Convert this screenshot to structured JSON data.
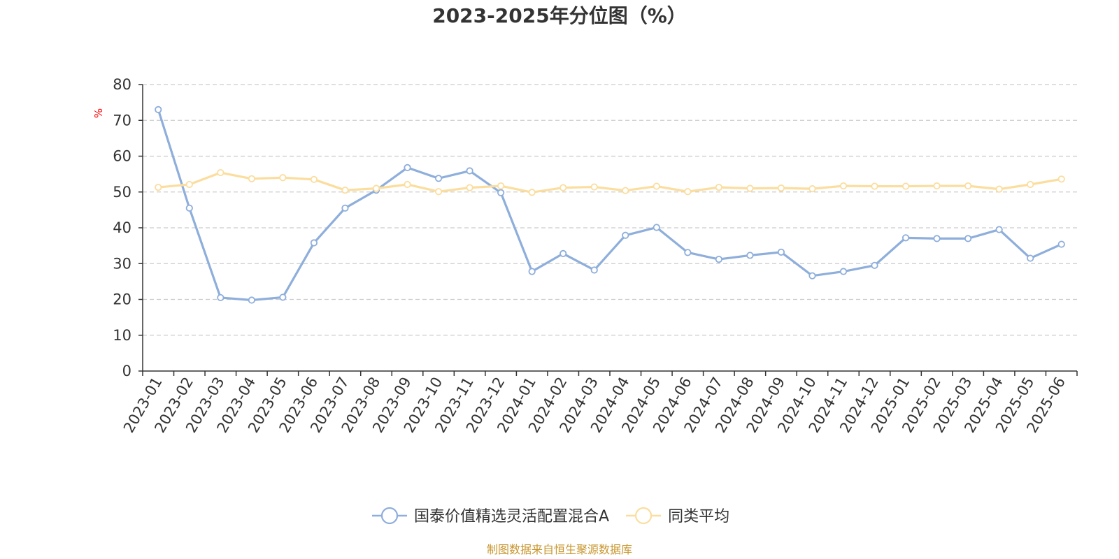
{
  "chart_data": {
    "type": "line",
    "title": "2023-2025年分位图（%）",
    "ylabel": "%",
    "ylim": [
      0,
      80
    ],
    "yticks": [
      "0",
      "10",
      "20",
      "30",
      "40",
      "50",
      "60",
      "70",
      "80"
    ],
    "categories": [
      "2023-01",
      "2023-02",
      "2023-03",
      "2023-04",
      "2023-05",
      "2023-06",
      "2023-07",
      "2023-08",
      "2023-09",
      "2023-10",
      "2023-11",
      "2023-12",
      "2024-01",
      "2024-02",
      "2024-03",
      "2024-04",
      "2024-05",
      "2024-06",
      "2024-07",
      "2024-08",
      "2024-09",
      "2024-10",
      "2024-11",
      "2024-12",
      "2025-01",
      "2025-02",
      "2025-03",
      "2025-04",
      "2025-05",
      "2025-06"
    ],
    "series": [
      {
        "name": "国泰价值精选灵活配置混合A",
        "color": "#8eaedb",
        "values": [
          73.0,
          45.5,
          20.5,
          19.8,
          20.6,
          35.8,
          45.5,
          50.5,
          56.8,
          53.8,
          55.9,
          49.8,
          27.8,
          32.8,
          28.2,
          37.9,
          40.1,
          33.1,
          31.2,
          32.3,
          33.2,
          26.6,
          27.8,
          29.5,
          37.2,
          37.0,
          37.0,
          39.5,
          31.5,
          35.4
        ]
      },
      {
        "name": "同类平均",
        "color": "#fbdd9e",
        "values": [
          51.3,
          52.1,
          55.4,
          53.7,
          54.0,
          53.5,
          50.5,
          51.0,
          52.1,
          50.1,
          51.2,
          51.7,
          49.9,
          51.2,
          51.4,
          50.4,
          51.6,
          50.1,
          51.3,
          51.0,
          51.1,
          50.9,
          51.7,
          51.6,
          51.6,
          51.7,
          51.7,
          50.8,
          52.1,
          53.6
        ]
      }
    ],
    "grid": true,
    "legend_position": "bottom-center"
  },
  "source_text": "制图数据来自恒生聚源数据库",
  "colors": {
    "axis": "#333333",
    "grid": "#cccccc",
    "unit": "#ff0000",
    "source": "#c8962e"
  }
}
